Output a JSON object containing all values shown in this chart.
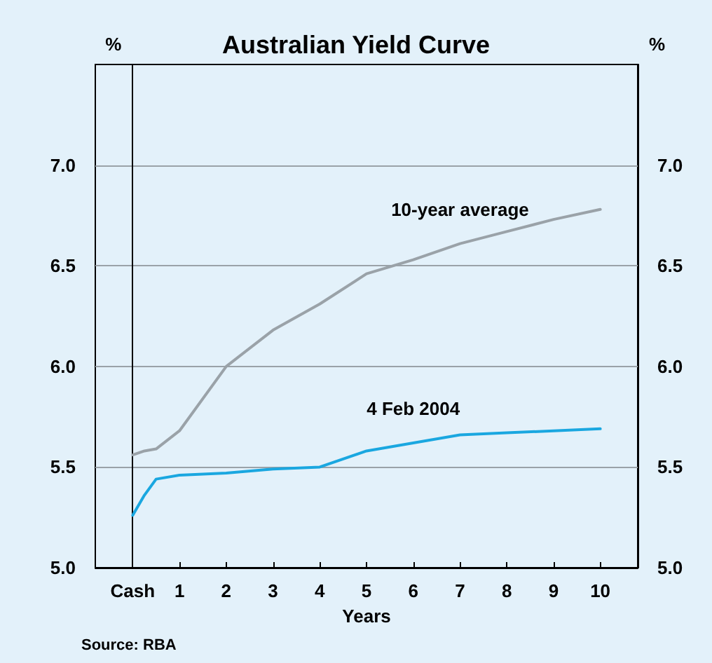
{
  "chart_data": {
    "type": "line",
    "title": "Australian Yield Curve",
    "xlabel": "Years",
    "ylabel": "%",
    "y2label": "%",
    "xlim": [
      -0.8,
      10.8
    ],
    "xticks": [
      {
        "value": 0,
        "label": "Cash"
      },
      1,
      2,
      3,
      4,
      5,
      6,
      7,
      8,
      9,
      10
    ],
    "ylim": [
      5.0,
      7.5
    ],
    "yticks": [
      {
        "value": 5,
        "label": "5.0"
      },
      5.5,
      {
        "value": 6,
        "label": "6.0"
      },
      6.5,
      {
        "value": 7,
        "label": "7.0"
      }
    ],
    "y2lim": [
      5.0,
      7.5
    ],
    "y2ticks": [
      {
        "value": 5,
        "label": "5.0"
      },
      5.5,
      {
        "value": 6,
        "label": "6.0"
      },
      6.5,
      {
        "value": 7,
        "label": "7.0"
      }
    ],
    "x": [
      0,
      0.25,
      0.5,
      1,
      2,
      3,
      4,
      5,
      6,
      7,
      8,
      9,
      10
    ],
    "series": [
      {
        "name": "10-year average",
        "color": "#9aa2a8",
        "values": [
          5.56,
          5.58,
          5.59,
          5.68,
          6.0,
          6.18,
          6.31,
          6.46,
          6.53,
          6.61,
          6.67,
          6.73,
          6.78
        ]
      },
      {
        "name": "4 Feb 2004",
        "color": "#1aa7e0",
        "values": [
          5.26,
          5.36,
          5.44,
          5.46,
          5.47,
          5.49,
          5.5,
          5.58,
          5.62,
          5.66,
          5.67,
          5.68,
          5.69
        ]
      }
    ],
    "grid": "y",
    "legend": false,
    "marker": "none",
    "line_style": "solid",
    "annotations": [
      "Source: RBA"
    ]
  }
}
